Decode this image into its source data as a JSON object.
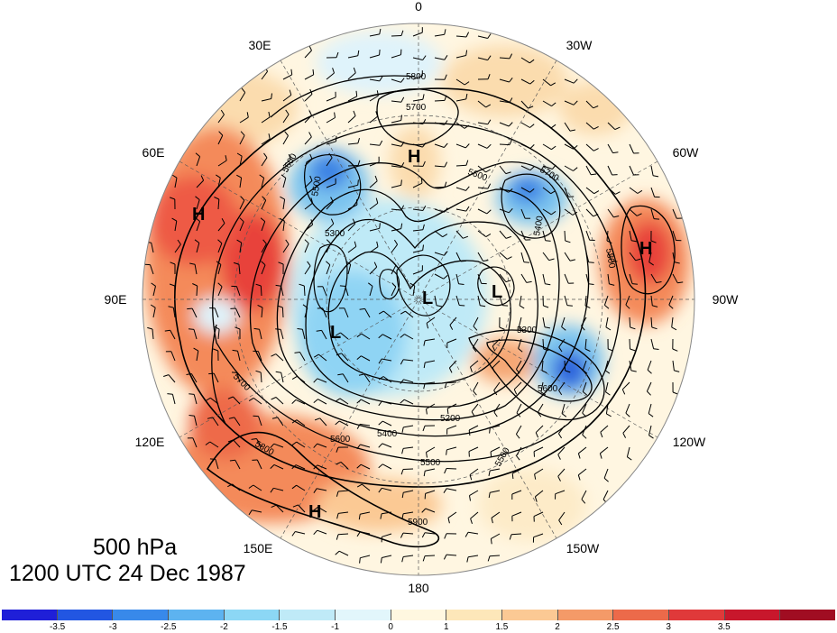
{
  "map": {
    "level_title": "500 hPa",
    "time_title": "1200 UTC 24 Dec 1987",
    "longitude_labels": [
      {
        "text": "0",
        "lon": 0
      },
      {
        "text": "30W",
        "lon": -30
      },
      {
        "text": "60W",
        "lon": -60
      },
      {
        "text": "90W",
        "lon": -90
      },
      {
        "text": "120W",
        "lon": -120
      },
      {
        "text": "150W",
        "lon": -150
      },
      {
        "text": "180",
        "lon": 180
      },
      {
        "text": "150E",
        "lon": 150
      },
      {
        "text": "120E",
        "lon": 120
      },
      {
        "text": "90E",
        "lon": 90
      },
      {
        "text": "60E",
        "lon": 60
      },
      {
        "text": "30E",
        "lon": 30
      }
    ],
    "pressure_centers": [
      {
        "type": "H",
        "label": "H"
      },
      {
        "type": "H",
        "label": "H"
      },
      {
        "type": "H",
        "label": "H"
      },
      {
        "type": "H",
        "label": "H"
      },
      {
        "type": "L",
        "label": "L"
      },
      {
        "type": "L",
        "label": "L"
      },
      {
        "type": "L",
        "label": "L"
      }
    ],
    "contour_labels": [
      "5800",
      "5700",
      "5600",
      "5500",
      "5600",
      "5700",
      "5400",
      "5300",
      "5800",
      "5300",
      "5200",
      "5600",
      "5500",
      "5400",
      "5600",
      "5900",
      "5800",
      "5500",
      "5700"
    ],
    "colors": {
      "positive_strong": "#e8423a",
      "positive_mid": "#f48a5a",
      "positive_weak": "#fbdcae",
      "near_zero": "#fff6e1",
      "negative_weak": "#bfeaf7",
      "negative_mid": "#7cc4ef",
      "negative_strong": "#2a63dc"
    }
  },
  "colorbar": {
    "colors": [
      "#1f1fd8",
      "#2256e2",
      "#3889ea",
      "#5db3f0",
      "#8cd7f5",
      "#bfeaf7",
      "#e2f6fb",
      "#fff7e0",
      "#fde7b9",
      "#fbc994",
      "#f49a68",
      "#ec6a4a",
      "#e0393a",
      "#c8172c",
      "#a00d22"
    ],
    "labels": [
      "-3.5",
      "-3",
      "-2.5",
      "-2",
      "-1.5",
      "-1",
      "0",
      "1",
      "1.5",
      "2",
      "2.5",
      "3",
      "3.5"
    ]
  }
}
